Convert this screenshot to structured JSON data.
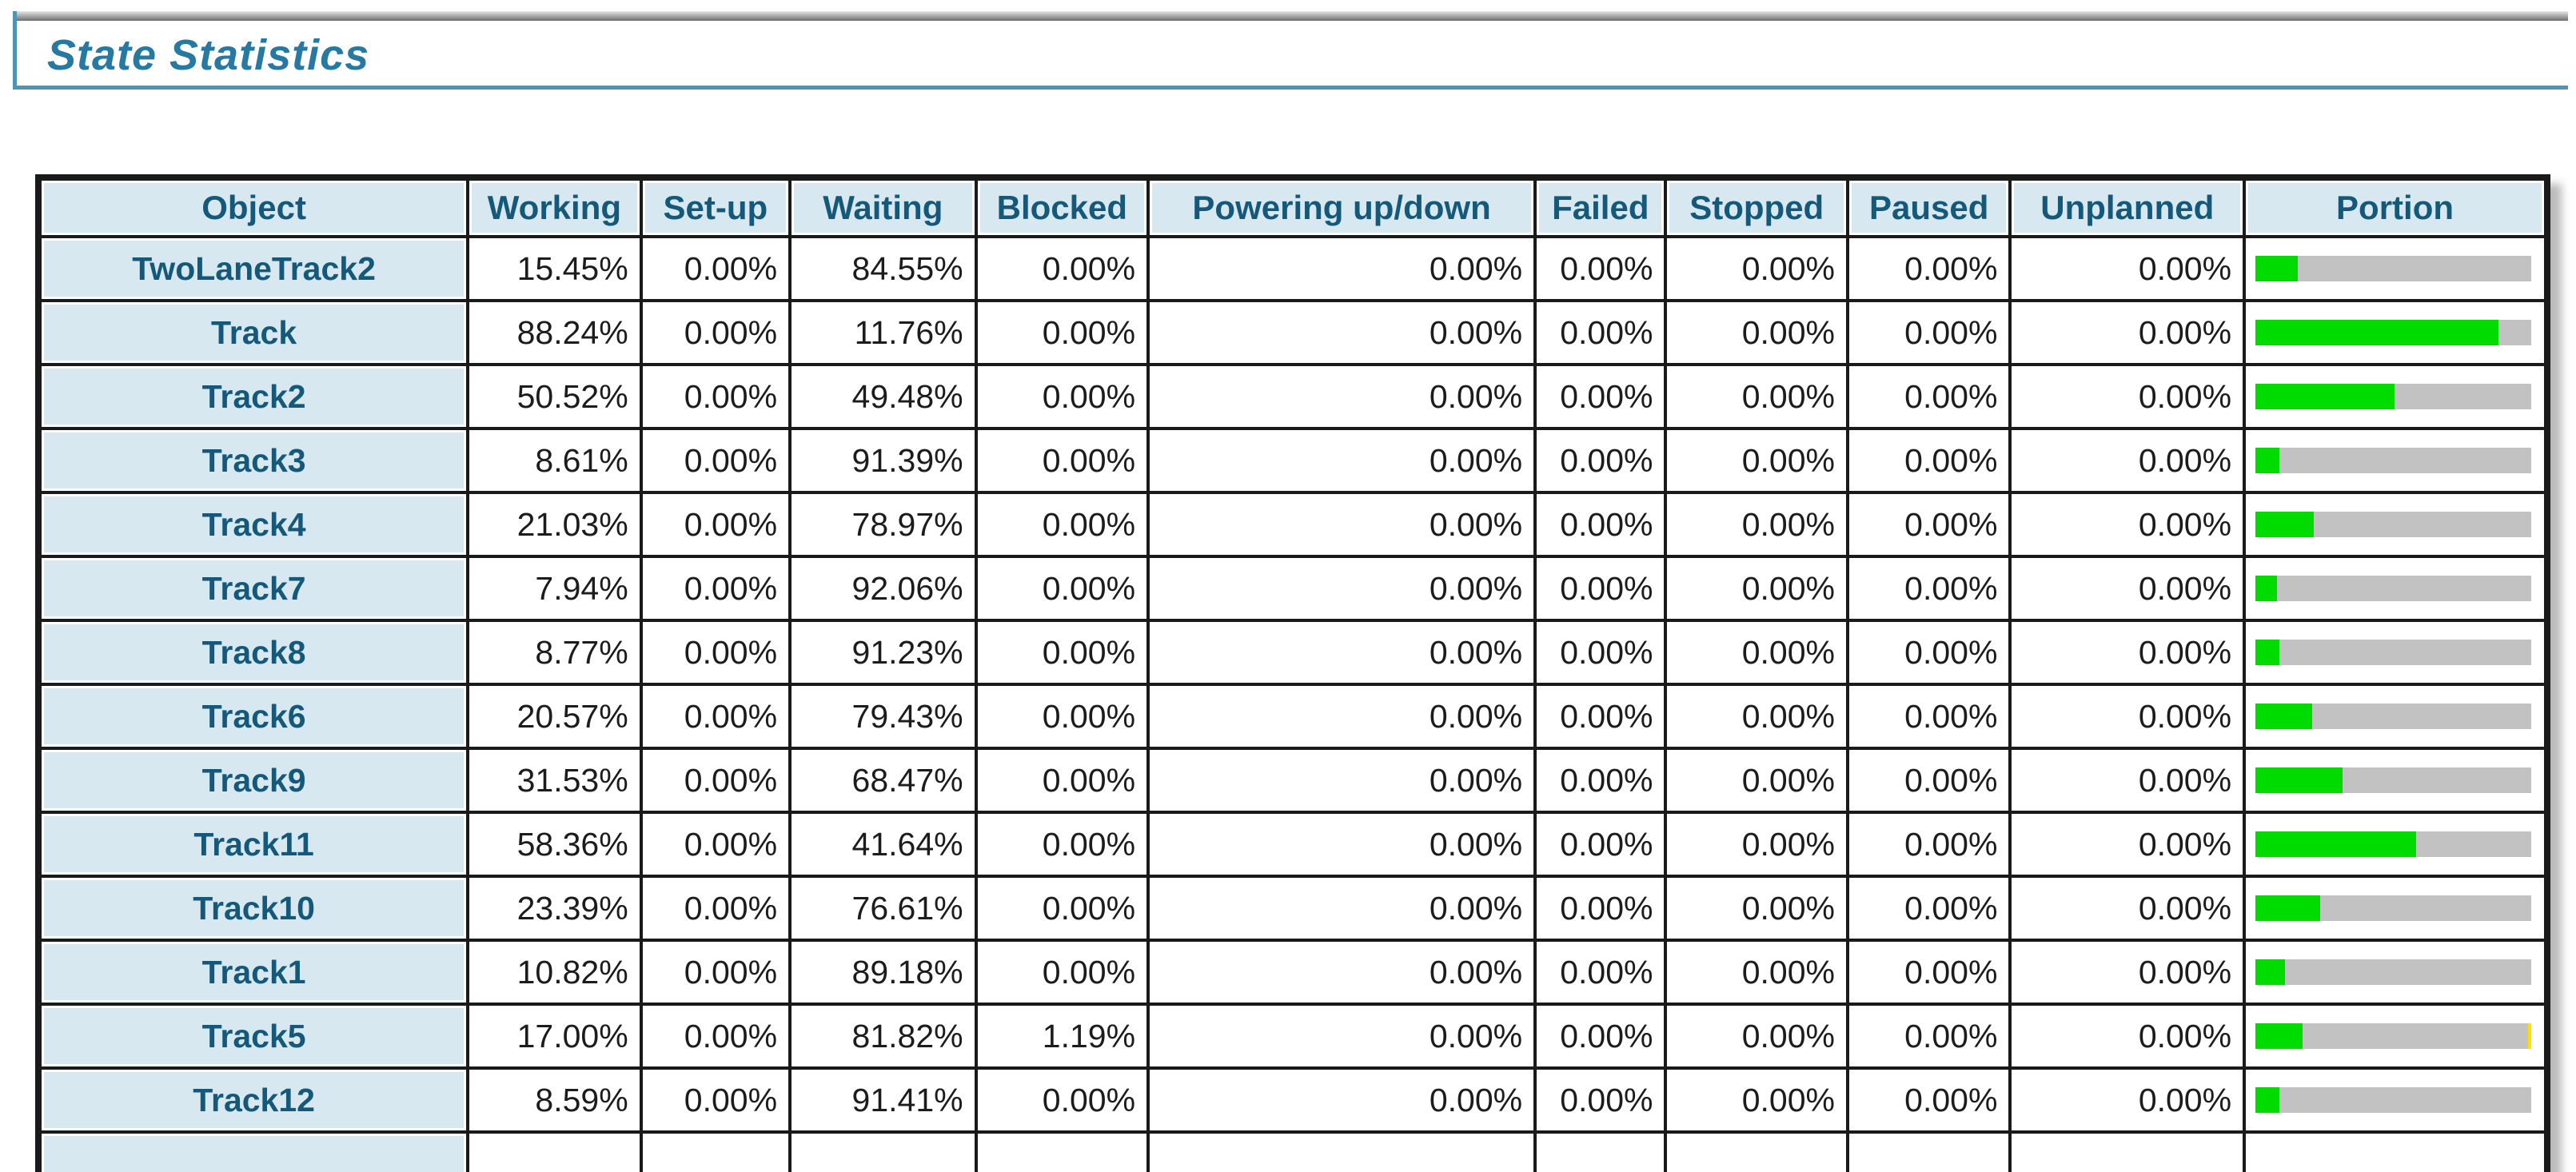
{
  "header": {
    "title": "State Statistics"
  },
  "table": {
    "columns": [
      "Object",
      "Working",
      "Set-up",
      "Waiting",
      "Blocked",
      "Powering up/down",
      "Failed",
      "Stopped",
      "Paused",
      "Unplanned",
      "Portion"
    ],
    "rows": [
      {
        "object": "TwoLaneTrack2",
        "working": "15.45%",
        "setup": "0.00%",
        "waiting": "84.55%",
        "blocked": "0.00%",
        "powering": "0.00%",
        "failed": "0.00%",
        "stopped": "0.00%",
        "paused": "0.00%",
        "unplanned": "0.00%",
        "portion": {
          "working": 15.45,
          "waiting": 84.55,
          "blocked": 0
        }
      },
      {
        "object": "Track",
        "working": "88.24%",
        "setup": "0.00%",
        "waiting": "11.76%",
        "blocked": "0.00%",
        "powering": "0.00%",
        "failed": "0.00%",
        "stopped": "0.00%",
        "paused": "0.00%",
        "unplanned": "0.00%",
        "portion": {
          "working": 88.24,
          "waiting": 11.76,
          "blocked": 0
        }
      },
      {
        "object": "Track2",
        "working": "50.52%",
        "setup": "0.00%",
        "waiting": "49.48%",
        "blocked": "0.00%",
        "powering": "0.00%",
        "failed": "0.00%",
        "stopped": "0.00%",
        "paused": "0.00%",
        "unplanned": "0.00%",
        "portion": {
          "working": 50.52,
          "waiting": 49.48,
          "blocked": 0
        }
      },
      {
        "object": "Track3",
        "working": "8.61%",
        "setup": "0.00%",
        "waiting": "91.39%",
        "blocked": "0.00%",
        "powering": "0.00%",
        "failed": "0.00%",
        "stopped": "0.00%",
        "paused": "0.00%",
        "unplanned": "0.00%",
        "portion": {
          "working": 8.61,
          "waiting": 91.39,
          "blocked": 0
        }
      },
      {
        "object": "Track4",
        "working": "21.03%",
        "setup": "0.00%",
        "waiting": "78.97%",
        "blocked": "0.00%",
        "powering": "0.00%",
        "failed": "0.00%",
        "stopped": "0.00%",
        "paused": "0.00%",
        "unplanned": "0.00%",
        "portion": {
          "working": 21.03,
          "waiting": 78.97,
          "blocked": 0
        }
      },
      {
        "object": "Track7",
        "working": "7.94%",
        "setup": "0.00%",
        "waiting": "92.06%",
        "blocked": "0.00%",
        "powering": "0.00%",
        "failed": "0.00%",
        "stopped": "0.00%",
        "paused": "0.00%",
        "unplanned": "0.00%",
        "portion": {
          "working": 7.94,
          "waiting": 92.06,
          "blocked": 0
        }
      },
      {
        "object": "Track8",
        "working": "8.77%",
        "setup": "0.00%",
        "waiting": "91.23%",
        "blocked": "0.00%",
        "powering": "0.00%",
        "failed": "0.00%",
        "stopped": "0.00%",
        "paused": "0.00%",
        "unplanned": "0.00%",
        "portion": {
          "working": 8.77,
          "waiting": 91.23,
          "blocked": 0
        }
      },
      {
        "object": "Track6",
        "working": "20.57%",
        "setup": "0.00%",
        "waiting": "79.43%",
        "blocked": "0.00%",
        "powering": "0.00%",
        "failed": "0.00%",
        "stopped": "0.00%",
        "paused": "0.00%",
        "unplanned": "0.00%",
        "portion": {
          "working": 20.57,
          "waiting": 79.43,
          "blocked": 0
        }
      },
      {
        "object": "Track9",
        "working": "31.53%",
        "setup": "0.00%",
        "waiting": "68.47%",
        "blocked": "0.00%",
        "powering": "0.00%",
        "failed": "0.00%",
        "stopped": "0.00%",
        "paused": "0.00%",
        "unplanned": "0.00%",
        "portion": {
          "working": 31.53,
          "waiting": 68.47,
          "blocked": 0
        }
      },
      {
        "object": "Track11",
        "working": "58.36%",
        "setup": "0.00%",
        "waiting": "41.64%",
        "blocked": "0.00%",
        "powering": "0.00%",
        "failed": "0.00%",
        "stopped": "0.00%",
        "paused": "0.00%",
        "unplanned": "0.00%",
        "portion": {
          "working": 58.36,
          "waiting": 41.64,
          "blocked": 0
        }
      },
      {
        "object": "Track10",
        "working": "23.39%",
        "setup": "0.00%",
        "waiting": "76.61%",
        "blocked": "0.00%",
        "powering": "0.00%",
        "failed": "0.00%",
        "stopped": "0.00%",
        "paused": "0.00%",
        "unplanned": "0.00%",
        "portion": {
          "working": 23.39,
          "waiting": 76.61,
          "blocked": 0
        }
      },
      {
        "object": "Track1",
        "working": "10.82%",
        "setup": "0.00%",
        "waiting": "89.18%",
        "blocked": "0.00%",
        "powering": "0.00%",
        "failed": "0.00%",
        "stopped": "0.00%",
        "paused": "0.00%",
        "unplanned": "0.00%",
        "portion": {
          "working": 10.82,
          "waiting": 89.18,
          "blocked": 0
        }
      },
      {
        "object": "Track5",
        "working": "17.00%",
        "setup": "0.00%",
        "waiting": "81.82%",
        "blocked": "1.19%",
        "powering": "0.00%",
        "failed": "0.00%",
        "stopped": "0.00%",
        "paused": "0.00%",
        "unplanned": "0.00%",
        "portion": {
          "working": 17.0,
          "waiting": 81.82,
          "blocked": 1.19
        }
      },
      {
        "object": "Track12",
        "working": "8.59%",
        "setup": "0.00%",
        "waiting": "91.41%",
        "blocked": "0.00%",
        "powering": "0.00%",
        "failed": "0.00%",
        "stopped": "0.00%",
        "paused": "0.00%",
        "unplanned": "0.00%",
        "portion": {
          "working": 8.59,
          "waiting": 91.41,
          "blocked": 0
        }
      }
    ],
    "has_partial_bottom_row": true
  },
  "colors": {
    "title_text": "#2679a2",
    "title_border": "#4e95b4",
    "header_background": "#d7e8f0",
    "header_text": "#14597a",
    "grid_border": "#1a1a1a",
    "portion_working": "#00dc00",
    "portion_waiting": "#c2c2c2",
    "portion_blocked": "#ffdf00"
  }
}
